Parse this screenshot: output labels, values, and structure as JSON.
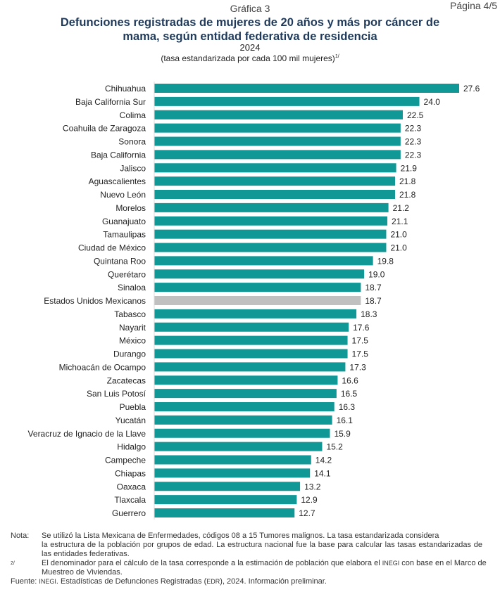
{
  "page_label": "Página 4/5",
  "chart_data": {
    "type": "bar",
    "orientation": "horizontal",
    "pretitle": "Gráfica 3",
    "title": "Defunciones registradas de mujeres de 20 años y más por cáncer de mama, según entidad federativa de residencia",
    "year": "2024",
    "subtitle": "(tasa estandarizada por cada 100 mil mujeres)",
    "subtitle_note": "1/",
    "categories": [
      "Chihuahua",
      "Baja California Sur",
      "Colima",
      "Coahuila de Zaragoza",
      "Sonora",
      "Baja California",
      "Jalisco",
      "Aguascalientes",
      "Nuevo León",
      "Morelos",
      "Guanajuato",
      "Tamaulipas",
      "Ciudad de México",
      "Quintana Roo",
      "Querétaro",
      "Sinaloa",
      "Estados Unidos Mexicanos",
      "Tabasco",
      "Nayarit",
      "México",
      "Durango",
      "Michoacán de Ocampo",
      "Zacatecas",
      "San Luis Potosí",
      "Puebla",
      "Yucatán",
      "Veracruz de Ignacio de la Llave",
      "Hidalgo",
      "Campeche",
      "Chiapas",
      "Oaxaca",
      "Tlaxcala",
      "Guerrero"
    ],
    "values": [
      27.6,
      24.0,
      22.5,
      22.3,
      22.3,
      22.3,
      21.9,
      21.8,
      21.8,
      21.2,
      21.1,
      21.0,
      21.0,
      19.8,
      19.0,
      18.7,
      18.7,
      18.3,
      17.6,
      17.5,
      17.5,
      17.3,
      16.6,
      16.5,
      16.3,
      16.1,
      15.9,
      15.2,
      14.2,
      14.1,
      13.2,
      12.9,
      12.7
    ],
    "highlight": "Estados Unidos Mexicanos",
    "colors": {
      "bar": "#0f9896",
      "highlight": "#c0c0c0"
    },
    "xlim": [
      0,
      27.6
    ],
    "grid": false
  },
  "notes": {
    "nota_label": "Nota:",
    "nota_text1": "Se utilizó la Lista Mexicana de Enfermedades, códigos 08 a 15 Tumores malignos. La tasa estandarizada considera",
    "nota_text2": "la estructura de la población por grupos de edad. La estructura nacional fue la base para calcular las tasas estandarizadas de las entidades federativas.",
    "note2_label": "2/",
    "note2_text_a": "El denominador para el cálculo de la tasa corresponde a la estimación de población que elabora el ",
    "note2_inegi": "INEGI",
    "note2_text_b": " con base en el Marco de Muestreo de Viviendas.",
    "fuente_label": "Fuente: ",
    "fuente_inegi": "INEGI",
    "fuente_a": ". Estadísticas de Defunciones Registradas (",
    "fuente_edr": "EDR",
    "fuente_b": "), 2024. Información preliminar."
  }
}
